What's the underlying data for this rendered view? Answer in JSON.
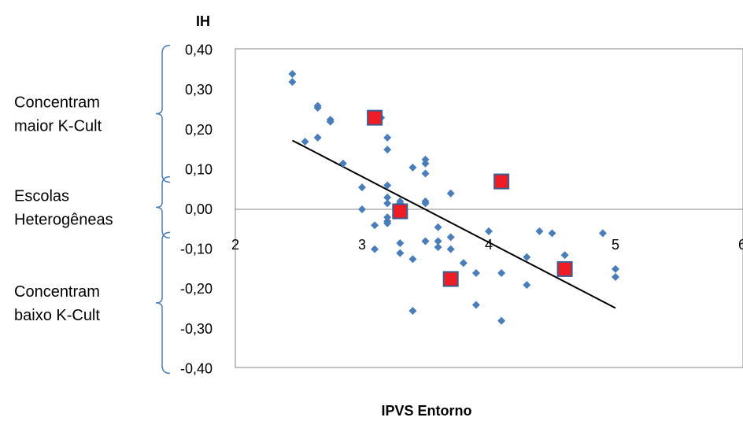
{
  "chart_data": {
    "type": "scatter",
    "title": "",
    "xlabel": "IPVS  Entorno",
    "ylabel": "IH",
    "xlim": [
      2,
      6
    ],
    "ylim": [
      -0.4,
      0.4
    ],
    "x_ticks": [
      "2",
      "3",
      "4",
      "5",
      "6"
    ],
    "y_ticks": [
      "0,40",
      "0,30",
      "0,20",
      "0,10",
      "0,00",
      "-0,10",
      "-0,20",
      "-0,30",
      "-0,40"
    ],
    "grid": false,
    "legend": "none",
    "colors": {
      "points": "#4a7ebb",
      "highlight": "#ee1c25",
      "highlight_border": "#3b5e91",
      "trendline": "#000000"
    },
    "series": [
      {
        "marker": "diamond",
        "points": [
          [
            2.45,
            0.34
          ],
          [
            2.45,
            0.32
          ],
          [
            2.55,
            0.17
          ],
          [
            2.65,
            0.26
          ],
          [
            2.65,
            0.255
          ],
          [
            2.65,
            0.18
          ],
          [
            2.75,
            0.225
          ],
          [
            2.75,
            0.22
          ],
          [
            2.85,
            0.115
          ],
          [
            3.0,
            0.055
          ],
          [
            3.0,
            0.0
          ],
          [
            3.1,
            -0.04
          ],
          [
            3.1,
            -0.1
          ],
          [
            3.15,
            0.23
          ],
          [
            3.2,
            0.18
          ],
          [
            3.2,
            0.15
          ],
          [
            3.2,
            0.06
          ],
          [
            3.2,
            0.03
          ],
          [
            3.2,
            0.015
          ],
          [
            3.2,
            -0.02
          ],
          [
            3.2,
            -0.03
          ],
          [
            3.2,
            -0.035
          ],
          [
            3.3,
            0.02
          ],
          [
            3.3,
            0.015
          ],
          [
            3.3,
            -0.085
          ],
          [
            3.3,
            -0.11
          ],
          [
            3.4,
            0.105
          ],
          [
            3.4,
            -0.125
          ],
          [
            3.4,
            -0.255
          ],
          [
            3.5,
            0.125
          ],
          [
            3.5,
            0.115
          ],
          [
            3.5,
            0.09
          ],
          [
            3.5,
            0.02
          ],
          [
            3.5,
            0.015
          ],
          [
            3.5,
            -0.08
          ],
          [
            3.6,
            -0.045
          ],
          [
            3.6,
            -0.08
          ],
          [
            3.6,
            -0.095
          ],
          [
            3.7,
            0.04
          ],
          [
            3.7,
            -0.07
          ],
          [
            3.7,
            -0.1
          ],
          [
            3.8,
            -0.135
          ],
          [
            3.9,
            -0.16
          ],
          [
            3.9,
            -0.24
          ],
          [
            4.0,
            -0.055
          ],
          [
            4.1,
            -0.16
          ],
          [
            4.1,
            -0.28
          ],
          [
            4.3,
            -0.12
          ],
          [
            4.3,
            -0.19
          ],
          [
            4.4,
            -0.055
          ],
          [
            4.5,
            -0.06
          ],
          [
            4.6,
            -0.115
          ],
          [
            4.9,
            -0.06
          ],
          [
            5.0,
            -0.15
          ],
          [
            5.0,
            -0.17
          ]
        ]
      },
      {
        "marker": "square",
        "points": [
          [
            3.1,
            0.23
          ],
          [
            3.3,
            -0.005
          ],
          [
            3.7,
            -0.175
          ],
          [
            4.1,
            0.07
          ],
          [
            4.6,
            -0.15
          ]
        ]
      }
    ],
    "trendline": {
      "x": [
        2.45,
        5.0
      ],
      "y": [
        0.173,
        -0.248
      ]
    },
    "annotations": [
      {
        "lines": [
          "Concentram",
          "maior K-Cult"
        ],
        "y_range": [
          0.4,
          0.08
        ]
      },
      {
        "lines": [
          "Escolas",
          "Heterogêneas"
        ],
        "y_range": [
          0.07,
          -0.06
        ]
      },
      {
        "lines": [
          "Concentram",
          "baixo K-Cult"
        ],
        "y_range": [
          -0.07,
          -0.4
        ]
      }
    ]
  }
}
